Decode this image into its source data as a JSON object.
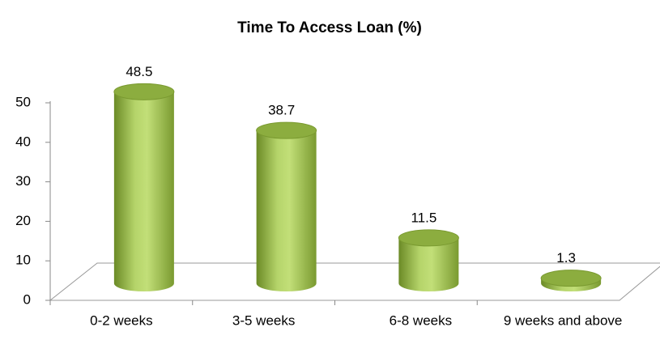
{
  "chart_data": {
    "type": "bar",
    "title": "Time To Access Loan (%)",
    "categories": [
      "0-2 weeks",
      "3-5 weeks",
      "6-8 weeks",
      "9 weeks and above"
    ],
    "values": [
      48.5,
      38.7,
      11.5,
      1.3
    ],
    "color": "#9bbb59",
    "ylim": [
      0,
      50
    ],
    "yticks": [
      0,
      10,
      20,
      30,
      40,
      50
    ]
  }
}
